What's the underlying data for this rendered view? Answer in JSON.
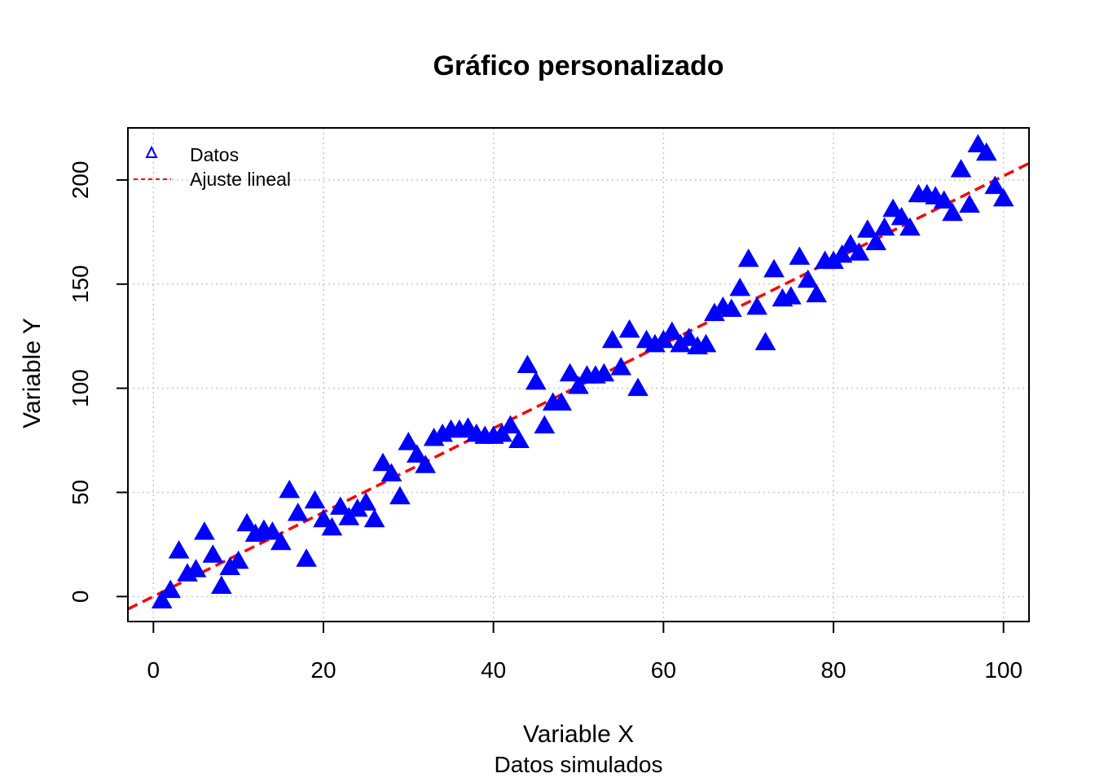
{
  "chart_data": {
    "type": "scatter",
    "title": "Gráfico personalizado",
    "xlabel": "Variable X",
    "ylabel": "Variable Y",
    "subtitle": "Datos simulados",
    "xlim": [
      -3,
      103
    ],
    "ylim": [
      -12,
      225
    ],
    "xticks": [
      0,
      20,
      40,
      60,
      80,
      100
    ],
    "yticks": [
      0,
      50,
      100,
      150,
      200
    ],
    "grid": true,
    "legend": {
      "placement": "top-left",
      "entries": [
        "Datos",
        "Ajuste lineal"
      ]
    },
    "colors": {
      "points": "#0000ff",
      "fit_line": "#ff0000"
    },
    "series": [
      {
        "name": "Datos",
        "x": [
          1,
          2,
          3,
          4,
          5,
          6,
          7,
          8,
          9,
          10,
          11,
          12,
          13,
          14,
          15,
          16,
          17,
          18,
          19,
          20,
          21,
          22,
          23,
          24,
          25,
          26,
          27,
          28,
          29,
          30,
          31,
          32,
          33,
          34,
          35,
          36,
          37,
          38,
          39,
          40,
          41,
          42,
          43,
          44,
          45,
          46,
          47,
          48,
          49,
          50,
          51,
          52,
          53,
          54,
          55,
          56,
          57,
          58,
          59,
          60,
          61,
          62,
          63,
          64,
          65,
          66,
          67,
          68,
          69,
          70,
          71,
          72,
          73,
          74,
          75,
          76,
          77,
          78,
          79,
          80,
          81,
          82,
          83,
          84,
          85,
          86,
          87,
          88,
          89,
          90,
          91,
          92,
          93,
          94,
          95,
          96,
          97,
          98,
          99,
          100
        ],
        "y": [
          -2,
          3,
          22,
          11,
          13,
          31,
          20,
          5,
          14,
          17,
          35,
          30,
          32,
          31,
          26,
          51,
          40,
          18,
          46,
          37,
          33,
          43,
          38,
          42,
          45,
          37,
          64,
          59,
          48,
          74,
          68,
          63,
          76,
          78,
          80,
          80,
          81,
          78,
          77,
          77,
          78,
          82,
          75,
          111,
          103,
          82,
          93,
          93,
          107,
          101,
          106,
          106,
          107,
          123,
          110,
          128,
          100,
          123,
          121,
          123,
          127,
          121,
          124,
          120,
          121,
          136,
          139,
          138,
          148,
          162,
          139,
          122,
          157,
          143,
          144,
          163,
          152,
          145,
          161,
          161,
          164,
          169,
          165,
          176,
          170,
          177,
          186,
          182,
          177,
          193,
          193,
          192,
          190,
          184,
          205,
          188,
          217,
          213,
          197,
          191
        ]
      },
      {
        "name": "Ajuste lineal",
        "type": "line",
        "x": [
          -3,
          103
        ],
        "y": [
          -6,
          208
        ]
      }
    ]
  }
}
